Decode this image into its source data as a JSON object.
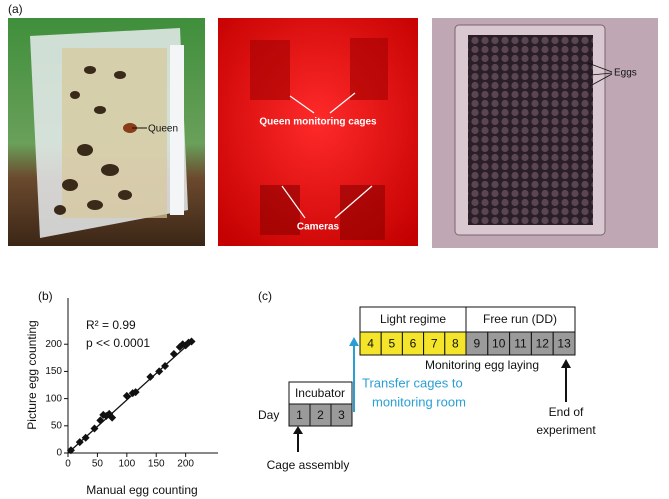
{
  "panel_a": {
    "label": "(a)",
    "annotations": {
      "queen": "Queen",
      "cages": "Queen monitoring cages",
      "cameras": "Cameras",
      "eggs": "Eggs"
    }
  },
  "chart_data": {
    "type": "scatter",
    "label": "(b)",
    "x_label": "Manual egg counting",
    "y_label": "Picture egg counting",
    "annotations": [
      "R² = 0.99",
      "p << 0.0001"
    ],
    "x": [
      5,
      20,
      30,
      45,
      55,
      60,
      65,
      70,
      75,
      100,
      110,
      115,
      140,
      155,
      165,
      180,
      190,
      195,
      200,
      205,
      210
    ],
    "values": [
      5,
      20,
      28,
      45,
      60,
      70,
      68,
      72,
      65,
      105,
      110,
      112,
      140,
      150,
      160,
      182,
      195,
      200,
      198,
      203,
      205
    ],
    "fit": {
      "x": [
        0,
        210
      ],
      "values": [
        0,
        205
      ]
    },
    "color": "#111111",
    "xlim": [
      0,
      255
    ],
    "ylim": [
      0,
      285
    ],
    "xticks": [
      0,
      50,
      100,
      150,
      200
    ],
    "yticks": [
      0,
      50,
      100,
      150,
      200
    ]
  },
  "panel_c": {
    "label": "(c)",
    "day_label": "Day",
    "incubator": {
      "title": "Incubator",
      "days": [
        1,
        2,
        3
      ]
    },
    "light_regime": {
      "title": "Light regime",
      "days": [
        4,
        5,
        6,
        7,
        8
      ]
    },
    "free_run": {
      "title": "Free run (DD)",
      "days": [
        9,
        10,
        11,
        12,
        13
      ]
    },
    "monitoring": "Monitoring egg laying",
    "transfer": [
      "Transfer cages to",
      "monitoring room"
    ],
    "end": [
      "End of",
      "experiment"
    ],
    "start": "Cage assembly"
  }
}
